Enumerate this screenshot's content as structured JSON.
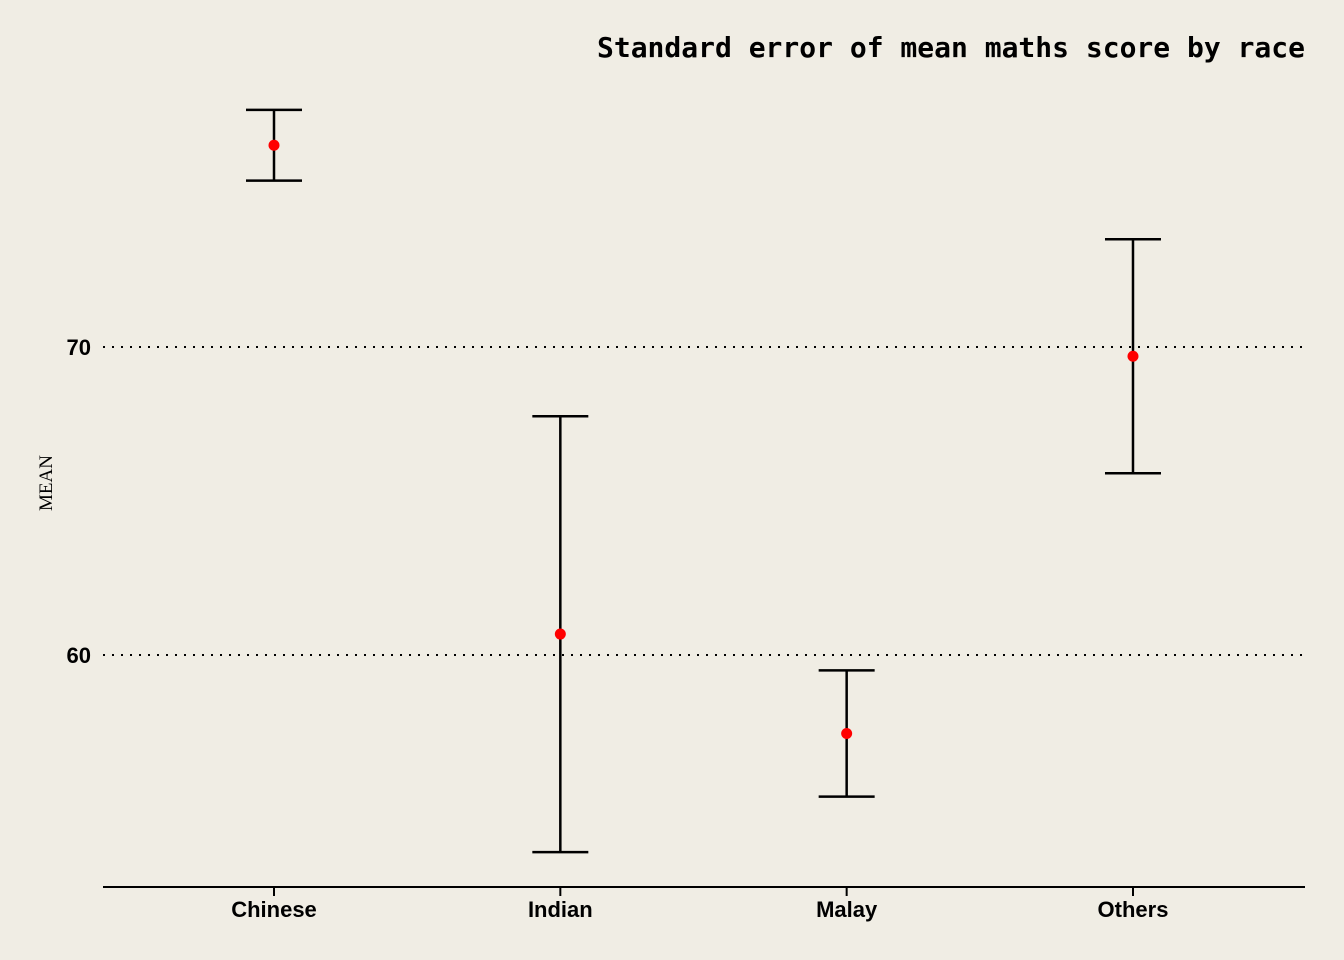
{
  "chart_data": {
    "type": "errorbar",
    "title": "Standard error of mean maths score by race",
    "xlabel": "",
    "ylabel": "MEAN",
    "categories": [
      "Chinese",
      "Indian",
      "Malay",
      "Others"
    ],
    "series": [
      {
        "mean": [
          76.55,
          60.68,
          57.45,
          69.7
        ],
        "lower": [
          75.4,
          53.6,
          55.4,
          65.9
        ],
        "upper": [
          77.7,
          67.75,
          59.5,
          73.5
        ]
      }
    ],
    "yticks": [
      60,
      70
    ],
    "ylim": [
      52.5,
      80
    ],
    "grid": "horizontal dotted",
    "colors": {
      "point": "#ff0000",
      "errorbar": "#000000",
      "background": "#f0ede4"
    }
  }
}
